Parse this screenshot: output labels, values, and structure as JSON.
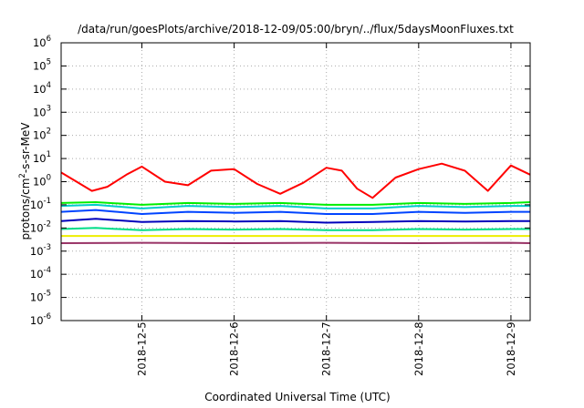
{
  "chart_data": {
    "type": "line",
    "title": "/data/run/goesPlots/archive/2018-12-09/05:00/bryn/../flux/5daysMoonFluxes.txt",
    "xlabel": "Coordinated Universal Time (UTC)",
    "ylabel": "protons/cm2-s-sr-MeV",
    "ylabel_parts": {
      "before": "protons/cm",
      "sup": "2",
      "after": "-s-sr-MeV"
    },
    "yscale": "log",
    "ylim": [
      1e-06,
      1000000.0
    ],
    "xlim": [
      "2018-12-04T03:00",
      "2018-12-09T05:00"
    ],
    "grid": true,
    "y_ticks": [
      {
        "base": "10",
        "exp": "-6",
        "value": 1e-06
      },
      {
        "base": "10",
        "exp": "-5",
        "value": 1e-05
      },
      {
        "base": "10",
        "exp": "-4",
        "value": 0.0001
      },
      {
        "base": "10",
        "exp": "-3",
        "value": 0.001
      },
      {
        "base": "10",
        "exp": "-2",
        "value": 0.01
      },
      {
        "base": "10",
        "exp": "-1",
        "value": 0.1
      },
      {
        "base": "10",
        "exp": "0",
        "value": 1
      },
      {
        "base": "10",
        "exp": "1",
        "value": 10
      },
      {
        "base": "10",
        "exp": "2",
        "value": 100
      },
      {
        "base": "10",
        "exp": "3",
        "value": 1000
      },
      {
        "base": "10",
        "exp": "4",
        "value": 10000
      },
      {
        "base": "10",
        "exp": "5",
        "value": 100000
      },
      {
        "base": "10",
        "exp": "6",
        "value": 1000000
      }
    ],
    "x_ticks": [
      {
        "label": "2018-12-5",
        "value": "2018-12-05T00:00"
      },
      {
        "label": "2018-12-6",
        "value": "2018-12-06T00:00"
      },
      {
        "label": "2018-12-7",
        "value": "2018-12-07T00:00"
      },
      {
        "label": "2018-12-8",
        "value": "2018-12-08T00:00"
      },
      {
        "label": "2018-12-9",
        "value": "2018-12-09T00:00"
      }
    ],
    "series": [
      {
        "color": "#ff0000",
        "x": [
          "2018-12-04T03:00",
          "2018-12-04T07:00",
          "2018-12-04T11:00",
          "2018-12-04T15:00",
          "2018-12-04T20:00",
          "2018-12-05T00:00",
          "2018-12-05T06:00",
          "2018-12-05T12:00",
          "2018-12-05T18:00",
          "2018-12-06T00:00",
          "2018-12-06T06:00",
          "2018-12-06T12:00",
          "2018-12-06T18:00",
          "2018-12-07T00:00",
          "2018-12-07T04:00",
          "2018-12-07T08:00",
          "2018-12-07T12:00",
          "2018-12-07T18:00",
          "2018-12-08T00:00",
          "2018-12-08T06:00",
          "2018-12-08T12:00",
          "2018-12-08T18:00",
          "2018-12-09T00:00",
          "2018-12-09T05:00"
        ],
        "y": [
          2.5,
          1.0,
          0.4,
          0.6,
          2.0,
          4.5,
          1.0,
          0.7,
          3.0,
          3.5,
          0.8,
          0.3,
          0.9,
          4.0,
          3.0,
          0.5,
          0.2,
          1.5,
          3.5,
          6.0,
          3.0,
          0.4,
          5.0,
          2.0
        ]
      },
      {
        "color": "#00ee00",
        "x": [
          "2018-12-04T03:00",
          "2018-12-04T12:00",
          "2018-12-05T00:00",
          "2018-12-05T12:00",
          "2018-12-06T00:00",
          "2018-12-06T12:00",
          "2018-12-07T00:00",
          "2018-12-07T12:00",
          "2018-12-08T00:00",
          "2018-12-08T12:00",
          "2018-12-09T00:00",
          "2018-12-09T05:00"
        ],
        "y": [
          0.12,
          0.13,
          0.1,
          0.12,
          0.11,
          0.12,
          0.1,
          0.1,
          0.12,
          0.11,
          0.12,
          0.13
        ]
      },
      {
        "color": "#00cccc",
        "x": [
          "2018-12-04T03:00",
          "2018-12-04T12:00",
          "2018-12-05T00:00",
          "2018-12-05T12:00",
          "2018-12-06T00:00",
          "2018-12-06T12:00",
          "2018-12-07T00:00",
          "2018-12-07T12:00",
          "2018-12-08T00:00",
          "2018-12-08T12:00",
          "2018-12-09T00:00",
          "2018-12-09T05:00"
        ],
        "y": [
          0.09,
          0.1,
          0.07,
          0.09,
          0.08,
          0.09,
          0.07,
          0.07,
          0.09,
          0.08,
          0.09,
          0.09
        ]
      },
      {
        "color": "#0044ff",
        "x": [
          "2018-12-04T03:00",
          "2018-12-04T12:00",
          "2018-12-05T00:00",
          "2018-12-05T12:00",
          "2018-12-06T00:00",
          "2018-12-06T12:00",
          "2018-12-07T00:00",
          "2018-12-07T12:00",
          "2018-12-08T00:00",
          "2018-12-08T12:00",
          "2018-12-09T00:00",
          "2018-12-09T05:00"
        ],
        "y": [
          0.05,
          0.06,
          0.04,
          0.05,
          0.045,
          0.05,
          0.04,
          0.04,
          0.05,
          0.045,
          0.05,
          0.05
        ]
      },
      {
        "color": "#0000bb",
        "x": [
          "2018-12-04T03:00",
          "2018-12-04T12:00",
          "2018-12-05T00:00",
          "2018-12-05T12:00",
          "2018-12-06T00:00",
          "2018-12-06T12:00",
          "2018-12-07T00:00",
          "2018-12-07T12:00",
          "2018-12-08T00:00",
          "2018-12-08T12:00",
          "2018-12-09T00:00",
          "2018-12-09T05:00"
        ],
        "y": [
          0.02,
          0.025,
          0.018,
          0.02,
          0.019,
          0.02,
          0.017,
          0.018,
          0.02,
          0.019,
          0.02,
          0.02
        ]
      },
      {
        "color": "#00dd88",
        "x": [
          "2018-12-04T03:00",
          "2018-12-04T12:00",
          "2018-12-05T00:00",
          "2018-12-05T12:00",
          "2018-12-06T00:00",
          "2018-12-06T12:00",
          "2018-12-07T00:00",
          "2018-12-07T12:00",
          "2018-12-08T00:00",
          "2018-12-08T12:00",
          "2018-12-09T00:00",
          "2018-12-09T05:00"
        ],
        "y": [
          0.009,
          0.01,
          0.008,
          0.009,
          0.0085,
          0.009,
          0.008,
          0.008,
          0.009,
          0.0085,
          0.009,
          0.009
        ]
      },
      {
        "color": "#eeee00",
        "x": [
          "2018-12-04T03:00",
          "2018-12-05T00:00",
          "2018-12-06T00:00",
          "2018-12-07T00:00",
          "2018-12-08T00:00",
          "2018-12-09T00:00",
          "2018-12-09T05:00"
        ],
        "y": [
          0.0045,
          0.0045,
          0.0045,
          0.0045,
          0.0045,
          0.0045,
          0.0045
        ]
      },
      {
        "color": "#993366",
        "x": [
          "2018-12-04T03:00",
          "2018-12-05T00:00",
          "2018-12-06T00:00",
          "2018-12-07T00:00",
          "2018-12-08T00:00",
          "2018-12-09T00:00",
          "2018-12-09T05:00"
        ],
        "y": [
          0.0022,
          0.0023,
          0.0022,
          0.0023,
          0.0022,
          0.0023,
          0.0022
        ]
      }
    ]
  }
}
